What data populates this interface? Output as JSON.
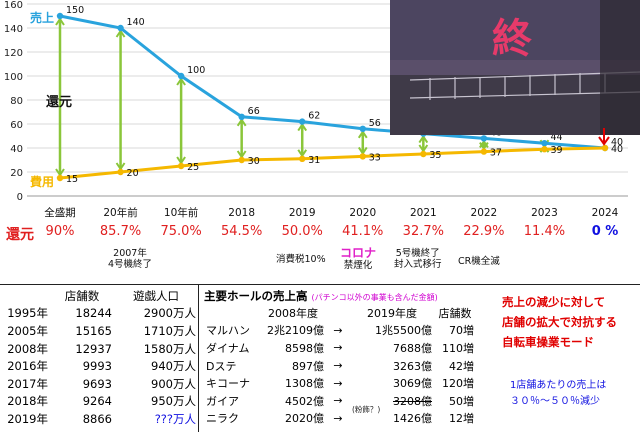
{
  "chart_data": {
    "type": "line",
    "categories": [
      "全盛期",
      "20年前",
      "10年前",
      "2018",
      "2019",
      "2020",
      "2021",
      "2022",
      "2023",
      "2024"
    ],
    "ylim": [
      0,
      160
    ],
    "yticks": [
      0,
      20,
      40,
      60,
      80,
      100,
      120,
      140,
      160
    ],
    "grid": true,
    "series": [
      {
        "name": "売上",
        "color": "#29a3dd",
        "values": [
          150,
          140,
          100,
          66,
          62,
          56,
          52,
          48,
          44,
          40
        ]
      },
      {
        "name": "費用",
        "color": "#f5b800",
        "values": [
          15,
          20,
          25,
          30,
          31,
          33,
          35,
          37,
          39,
          40
        ]
      }
    ],
    "annotation_label": "還元",
    "return_label": "還元",
    "return_values": [
      "90%",
      "85.7%",
      "75.0%",
      "54.5%",
      "50.0%",
      "41.1%",
      "32.7%",
      "22.9%",
      "11.4%",
      "0 %"
    ],
    "arrow_color": "#8ac63a"
  },
  "notes": {
    "n2007a": "2007年",
    "n2007b": "4号機終了",
    "tax": "消費税10%",
    "corona": "コロナ",
    "smoking": "禁煙化",
    "gou5a": "5号機終了",
    "gou5b": "封入式移行",
    "cr": "CR機全滅"
  },
  "photo": {
    "kanji": "終"
  },
  "stores": {
    "headers": [
      "店舗数",
      "遊戯人口"
    ],
    "rows": [
      [
        "1995年",
        "18244",
        "2900万人"
      ],
      [
        "2005年",
        "15165",
        "1710万人"
      ],
      [
        "2008年",
        "12937",
        "1580万人"
      ],
      [
        "2016年",
        "9993",
        "940万人"
      ],
      [
        "2017年",
        "9693",
        "900万人"
      ],
      [
        "2018年",
        "9264",
        "950万人"
      ],
      [
        "2019年",
        "8866",
        "???万人"
      ]
    ]
  },
  "halls": {
    "title": "主要ホールの売上高",
    "subtitle": "(パチンコ以外の事業も含んだ金額)",
    "headers": [
      "2008年度",
      "2019年度",
      "店舗数"
    ],
    "arrow": "→",
    "dubious": "(粉飾？)",
    "rows": [
      [
        "マルハン",
        "2兆2109億",
        "1兆5500億",
        "70増"
      ],
      [
        "ダイナム",
        "8598億",
        "7688億",
        "110増"
      ],
      [
        "Dステ",
        "897億",
        "3263億",
        "42増"
      ],
      [
        "キコーナ",
        "1308億",
        "3069億",
        "120増"
      ],
      [
        "ガイア",
        "4502億",
        "3208億",
        "50増"
      ],
      [
        "ニラク",
        "2020億",
        "1426億",
        "12増"
      ]
    ],
    "corrected": "1426億"
  },
  "commentary": {
    "red_lines": [
      "売上の減少に対して",
      "店舗の拡大で対抗する",
      "自転車操業モード"
    ],
    "blue_lines": [
      "1店舗あたりの売上は",
      "３０％～５０％減少"
    ]
  }
}
